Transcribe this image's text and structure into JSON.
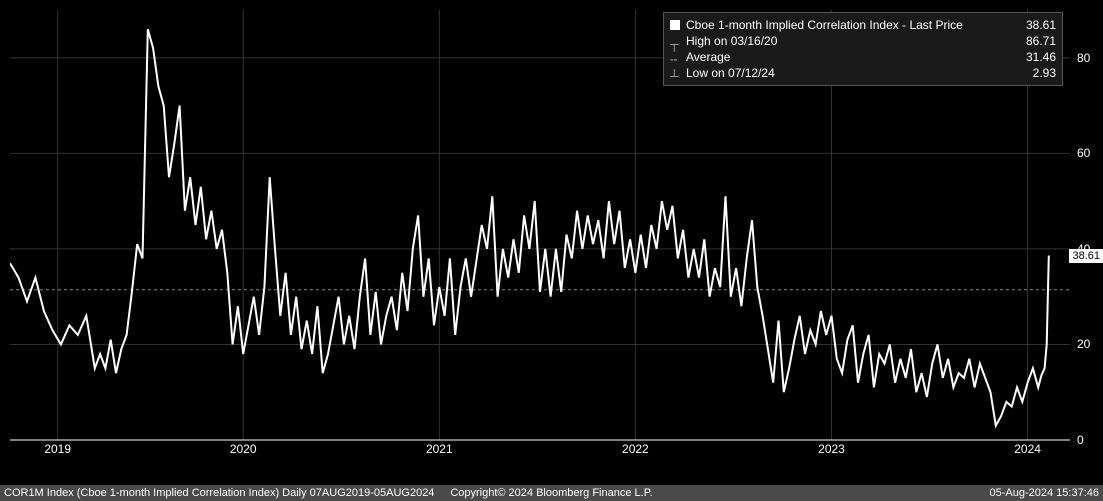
{
  "chart": {
    "type": "line",
    "background_color": "#000000",
    "grid_color": "#333333",
    "line_color": "#ffffff",
    "line_width": 2,
    "ylim": [
      0,
      90
    ],
    "yticks": [
      0,
      20,
      40,
      60,
      80
    ],
    "years": [
      "2019",
      "2020",
      "2021",
      "2022",
      "2023",
      "2024"
    ],
    "year_positions_pct": [
      4.5,
      22,
      40.5,
      59,
      77.5,
      96
    ],
    "last_price": "38.61",
    "series": [
      [
        0.0,
        37.0
      ],
      [
        0.8,
        34.0
      ],
      [
        1.6,
        29.0
      ],
      [
        2.4,
        34.0
      ],
      [
        3.2,
        27.0
      ],
      [
        4.0,
        23.0
      ],
      [
        4.8,
        20.0
      ],
      [
        5.6,
        24.0
      ],
      [
        6.4,
        22.0
      ],
      [
        7.2,
        26.0
      ],
      [
        8.0,
        15.0
      ],
      [
        8.5,
        18.0
      ],
      [
        9.0,
        15.0
      ],
      [
        9.5,
        21.0
      ],
      [
        10.0,
        14.0
      ],
      [
        10.5,
        19.0
      ],
      [
        11.0,
        22.0
      ],
      [
        11.5,
        31.0
      ],
      [
        12.0,
        41.0
      ],
      [
        12.5,
        38.0
      ],
      [
        13.0,
        86.0
      ],
      [
        13.5,
        82.0
      ],
      [
        14.0,
        74.0
      ],
      [
        14.5,
        70.0
      ],
      [
        15.0,
        55.0
      ],
      [
        15.5,
        62.0
      ],
      [
        16.0,
        70.0
      ],
      [
        16.5,
        48.0
      ],
      [
        17.0,
        55.0
      ],
      [
        17.5,
        45.0
      ],
      [
        18.0,
        53.0
      ],
      [
        18.5,
        42.0
      ],
      [
        19.0,
        48.0
      ],
      [
        19.5,
        40.0
      ],
      [
        20.0,
        44.0
      ],
      [
        20.5,
        35.0
      ],
      [
        21.0,
        20.0
      ],
      [
        21.5,
        28.0
      ],
      [
        22.0,
        18.0
      ],
      [
        22.5,
        24.0
      ],
      [
        23.0,
        30.0
      ],
      [
        23.5,
        22.0
      ],
      [
        24.0,
        32.0
      ],
      [
        24.5,
        55.0
      ],
      [
        25.0,
        40.0
      ],
      [
        25.5,
        26.0
      ],
      [
        26.0,
        35.0
      ],
      [
        26.5,
        22.0
      ],
      [
        27.0,
        30.0
      ],
      [
        27.5,
        19.0
      ],
      [
        28.0,
        25.0
      ],
      [
        28.5,
        18.0
      ],
      [
        29.0,
        28.0
      ],
      [
        29.5,
        14.0
      ],
      [
        30.0,
        18.0
      ],
      [
        30.5,
        24.0
      ],
      [
        31.0,
        30.0
      ],
      [
        31.5,
        20.0
      ],
      [
        32.0,
        26.0
      ],
      [
        32.5,
        19.0
      ],
      [
        33.0,
        30.0
      ],
      [
        33.5,
        38.0
      ],
      [
        34.0,
        22.0
      ],
      [
        34.5,
        31.0
      ],
      [
        35.0,
        20.0
      ],
      [
        35.5,
        26.0
      ],
      [
        36.0,
        30.0
      ],
      [
        36.5,
        23.0
      ],
      [
        37.0,
        35.0
      ],
      [
        37.5,
        27.0
      ],
      [
        38.0,
        40.0
      ],
      [
        38.5,
        47.0
      ],
      [
        39.0,
        30.0
      ],
      [
        39.5,
        38.0
      ],
      [
        40.0,
        24.0
      ],
      [
        40.5,
        32.0
      ],
      [
        41.0,
        26.0
      ],
      [
        41.5,
        38.0
      ],
      [
        42.0,
        22.0
      ],
      [
        42.5,
        32.0
      ],
      [
        43.0,
        38.0
      ],
      [
        43.5,
        30.0
      ],
      [
        44.5,
        45.0
      ],
      [
        45.0,
        40.0
      ],
      [
        45.5,
        51.0
      ],
      [
        46.0,
        30.0
      ],
      [
        46.5,
        40.0
      ],
      [
        47.0,
        34.0
      ],
      [
        47.5,
        42.0
      ],
      [
        48.0,
        35.0
      ],
      [
        48.5,
        47.0
      ],
      [
        49.0,
        40.0
      ],
      [
        49.5,
        50.0
      ],
      [
        50.0,
        31.0
      ],
      [
        50.5,
        40.0
      ],
      [
        51.0,
        30.0
      ],
      [
        51.5,
        40.0
      ],
      [
        52.0,
        31.0
      ],
      [
        52.5,
        43.0
      ],
      [
        53.0,
        38.0
      ],
      [
        53.5,
        48.0
      ],
      [
        54.0,
        40.0
      ],
      [
        54.5,
        47.0
      ],
      [
        55.0,
        41.0
      ],
      [
        55.5,
        46.0
      ],
      [
        56.0,
        38.0
      ],
      [
        56.5,
        50.0
      ],
      [
        57.0,
        41.0
      ],
      [
        57.5,
        48.0
      ],
      [
        58.0,
        36.0
      ],
      [
        58.5,
        42.0
      ],
      [
        59.0,
        35.0
      ],
      [
        59.5,
        43.0
      ],
      [
        60.0,
        36.0
      ],
      [
        60.5,
        45.0
      ],
      [
        61.0,
        40.0
      ],
      [
        61.5,
        50.0
      ],
      [
        62.0,
        44.0
      ],
      [
        62.5,
        49.0
      ],
      [
        63.0,
        38.0
      ],
      [
        63.5,
        44.0
      ],
      [
        64.0,
        34.0
      ],
      [
        64.5,
        40.0
      ],
      [
        65.0,
        34.0
      ],
      [
        65.5,
        42.0
      ],
      [
        66.0,
        30.0
      ],
      [
        66.5,
        36.0
      ],
      [
        67.0,
        32.0
      ],
      [
        67.5,
        51.0
      ],
      [
        68.0,
        30.0
      ],
      [
        68.5,
        36.0
      ],
      [
        69.0,
        28.0
      ],
      [
        69.5,
        38.0
      ],
      [
        70.0,
        46.0
      ],
      [
        70.5,
        32.0
      ],
      [
        71.0,
        26.0
      ],
      [
        71.5,
        19.0
      ],
      [
        72.0,
        12.0
      ],
      [
        72.5,
        25.0
      ],
      [
        73.0,
        10.0
      ],
      [
        73.5,
        15.0
      ],
      [
        74.0,
        21.0
      ],
      [
        74.5,
        26.0
      ],
      [
        75.0,
        18.0
      ],
      [
        75.5,
        23.0
      ],
      [
        76.0,
        20.0
      ],
      [
        76.5,
        27.0
      ],
      [
        77.0,
        22.0
      ],
      [
        77.5,
        26.0
      ],
      [
        78.0,
        17.0
      ],
      [
        78.5,
        14.0
      ],
      [
        79.0,
        21.0
      ],
      [
        79.5,
        24.0
      ],
      [
        80.0,
        12.0
      ],
      [
        80.5,
        18.0
      ],
      [
        81.0,
        22.0
      ],
      [
        81.5,
        11.0
      ],
      [
        82.0,
        18.0
      ],
      [
        82.5,
        16.0
      ],
      [
        83.0,
        20.0
      ],
      [
        83.5,
        12.0
      ],
      [
        84.0,
        17.0
      ],
      [
        84.5,
        13.0
      ],
      [
        85.0,
        19.0
      ],
      [
        85.5,
        10.0
      ],
      [
        86.0,
        14.0
      ],
      [
        86.5,
        9.0
      ],
      [
        87.0,
        16.0
      ],
      [
        87.5,
        20.0
      ],
      [
        88.0,
        13.0
      ],
      [
        88.5,
        17.0
      ],
      [
        89.0,
        11.0
      ],
      [
        89.5,
        14.0
      ],
      [
        90.0,
        13.0
      ],
      [
        90.5,
        17.0
      ],
      [
        91.0,
        11.0
      ],
      [
        91.5,
        16.0
      ],
      [
        92.0,
        13.0
      ],
      [
        92.5,
        10.0
      ],
      [
        93.0,
        3.0
      ],
      [
        93.5,
        5.0
      ],
      [
        94.0,
        8.0
      ],
      [
        94.5,
        7.0
      ],
      [
        95.0,
        11.0
      ],
      [
        95.5,
        8.0
      ],
      [
        96.0,
        12.0
      ],
      [
        96.5,
        15.0
      ],
      [
        97.0,
        11.0
      ],
      [
        97.3,
        13.5
      ],
      [
        97.6,
        15.0
      ],
      [
        97.8,
        20.0
      ],
      [
        98.0,
        38.61
      ]
    ],
    "average_line": 31.46,
    "average_color": "#888888"
  },
  "legend": {
    "title_label": "Cboe 1-month Implied Correlation Index - Last Price",
    "title_value": "38.61",
    "high_label": "High on 03/16/20",
    "high_value": "86.71",
    "avg_label": "Average",
    "avg_value": "31.46",
    "low_label": "Low on 07/12/24",
    "low_value": "2.93",
    "box_bg": "#1a1a1a",
    "box_border": "#555555",
    "text_color": "#ffffff"
  },
  "footer": {
    "left": "COR1M Index (Cboe 1-month Implied Correlation Index)   Daily 07AUG2019-05AUG2024",
    "center": "Copyright© 2024 Bloomberg Finance L.P.",
    "right": "05-Aug-2024 15:37:46",
    "bg_color": "#4a4a4a",
    "text_color": "#ffffff"
  }
}
